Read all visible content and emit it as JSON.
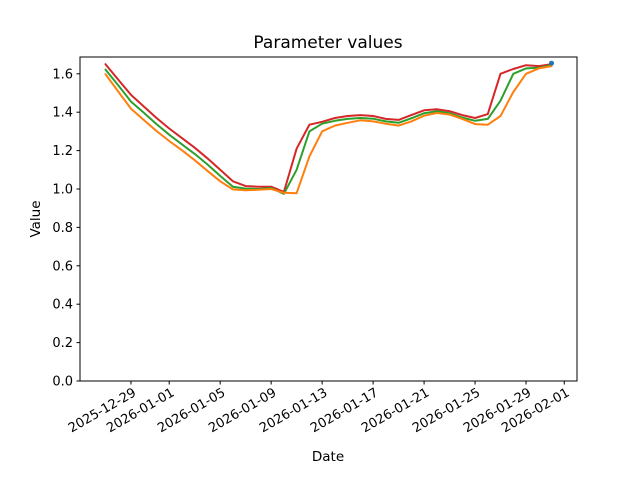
{
  "title": "Parameter values",
  "chart_data": {
    "type": "line",
    "title": "Parameter values",
    "xlabel": "Date",
    "ylabel": "Value",
    "x": [
      "2025-12-27",
      "2025-12-28",
      "2025-12-29",
      "2025-12-30",
      "2025-12-31",
      "2026-01-01",
      "2026-01-02",
      "2026-01-03",
      "2026-01-04",
      "2026-01-05",
      "2026-01-06",
      "2026-01-07",
      "2026-01-08",
      "2026-01-09",
      "2026-01-10",
      "2026-01-11",
      "2026-01-12",
      "2026-01-13",
      "2026-01-14",
      "2026-01-15",
      "2026-01-16",
      "2026-01-17",
      "2026-01-18",
      "2026-01-19",
      "2026-01-20",
      "2026-01-21",
      "2026-01-22",
      "2026-01-23",
      "2026-01-24",
      "2026-01-25",
      "2026-01-26",
      "2026-01-27",
      "2026-01-28",
      "2026-01-29",
      "2026-01-30",
      "2026-01-31"
    ],
    "series": [
      {
        "name": "red-line",
        "color": "#d62728",
        "values": [
          1.65,
          1.57,
          1.49,
          1.43,
          1.37,
          1.315,
          1.265,
          1.215,
          1.16,
          1.1,
          1.04,
          1.015,
          1.012,
          1.012,
          0.985,
          1.21,
          1.335,
          1.35,
          1.37,
          1.38,
          1.385,
          1.38,
          1.365,
          1.36,
          1.385,
          1.41,
          1.415,
          1.405,
          1.385,
          1.37,
          1.39,
          1.6,
          1.625,
          1.645,
          1.64,
          1.65
        ]
      },
      {
        "name": "green-line",
        "color": "#2ca02c",
        "values": [
          1.622,
          1.54,
          1.455,
          1.398,
          1.338,
          1.283,
          1.233,
          1.183,
          1.128,
          1.068,
          1.012,
          1.002,
          1.0,
          1.005,
          0.975,
          1.1,
          1.3,
          1.34,
          1.355,
          1.365,
          1.37,
          1.366,
          1.352,
          1.345,
          1.368,
          1.395,
          1.405,
          1.395,
          1.372,
          1.355,
          1.365,
          1.46,
          1.6,
          1.628,
          1.632,
          1.645
        ]
      },
      {
        "name": "orange-line",
        "color": "#ff7f0e",
        "values": [
          1.598,
          1.508,
          1.418,
          1.36,
          1.302,
          1.25,
          1.202,
          1.15,
          1.095,
          1.04,
          0.998,
          0.993,
          0.996,
          1.0,
          0.98,
          0.978,
          1.17,
          1.3,
          1.33,
          1.345,
          1.358,
          1.352,
          1.34,
          1.33,
          1.352,
          1.382,
          1.396,
          1.388,
          1.365,
          1.338,
          1.335,
          1.38,
          1.505,
          1.6,
          1.628,
          1.64
        ]
      }
    ],
    "end_marker": {
      "x": "2026-01-31",
      "value": 1.655,
      "color": "#1f77b4"
    },
    "xticks": [
      "2025-12-29",
      "2026-01-01",
      "2026-01-05",
      "2026-01-09",
      "2026-01-13",
      "2026-01-17",
      "2026-01-21",
      "2026-01-25",
      "2026-01-29",
      "2026-02-01"
    ],
    "yticks": [
      "0.0",
      "0.2",
      "0.4",
      "0.6",
      "0.8",
      "1.0",
      "1.2",
      "1.4",
      "1.6"
    ],
    "ylim": [
      0,
      1.6875
    ],
    "xtick_rotation_deg": 30,
    "grid": false,
    "legend": null,
    "axis_color": "#000000"
  }
}
